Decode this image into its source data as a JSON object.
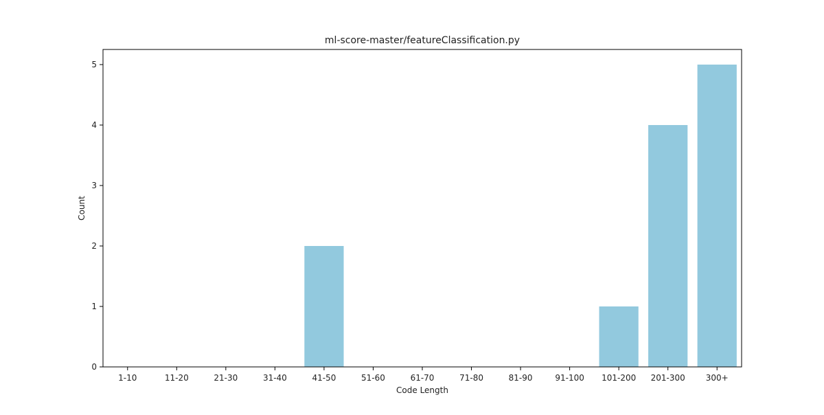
{
  "chart_data": {
    "type": "bar",
    "title": "ml-score-master/featureClassification.py",
    "xlabel": "Code Length",
    "ylabel": "Count",
    "categories": [
      "1-10",
      "11-20",
      "21-30",
      "31-40",
      "41-50",
      "51-60",
      "61-70",
      "71-80",
      "81-90",
      "91-100",
      "101-200",
      "201-300",
      "300+"
    ],
    "values": [
      0,
      0,
      0,
      0,
      2,
      0,
      0,
      0,
      0,
      0,
      1,
      4,
      5
    ],
    "ylim": [
      0,
      5.25
    ],
    "yticks": [
      0,
      1,
      2,
      3,
      4,
      5
    ],
    "bar_color": "#92c9de",
    "grid": false,
    "legend": "none"
  }
}
